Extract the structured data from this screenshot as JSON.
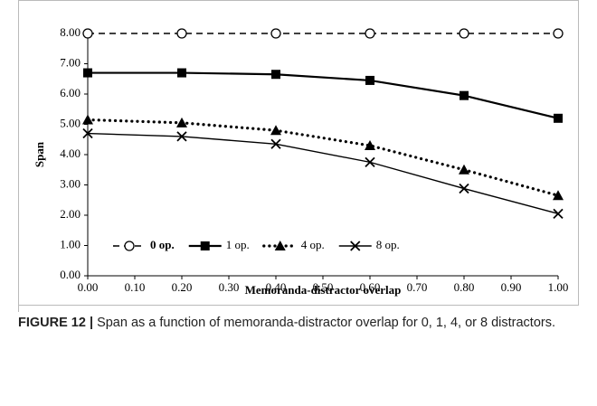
{
  "chart_data": {
    "type": "line",
    "y_label": "Span",
    "x_label": "Memoranda-distractor overlap",
    "x": [
      0,
      0.2,
      0.4,
      0.6,
      0.8,
      1.0
    ],
    "series": [
      {
        "name": "0 op.",
        "color": "#000000",
        "marker": "circle",
        "line_style": "dashed",
        "values": [
          8,
          8,
          8,
          8,
          8,
          8
        ]
      },
      {
        "name": "1 op.",
        "color": "#000000",
        "marker": "square",
        "line_style": "solid",
        "values": [
          6.7,
          6.7,
          6.65,
          6.45,
          5.95,
          5.2
        ]
      },
      {
        "name": "4 op.",
        "color": "#000000",
        "marker": "triangle",
        "line_style": "dotted",
        "values": [
          5.15,
          5.05,
          4.8,
          4.3,
          3.5,
          2.65
        ]
      },
      {
        "name": "8 op.",
        "color": "#000000",
        "marker": "x",
        "line_style": "thin",
        "values": [
          4.7,
          4.6,
          4.35,
          3.75,
          2.88,
          2.05
        ]
      }
    ],
    "xlim": [
      0,
      1
    ],
    "xticks": [
      {
        "value": 0,
        "label": "0.00"
      },
      {
        "value": 0.1,
        "label": "0.10"
      },
      {
        "value": 0.2,
        "label": "0.20"
      },
      {
        "value": 0.3,
        "label": "0.30"
      },
      {
        "value": 0.4,
        "label": "0.40"
      },
      {
        "value": 0.5,
        "label": "0.50"
      },
      {
        "value": 0.6,
        "label": "0.60"
      },
      {
        "value": 0.7,
        "label": "0.70"
      },
      {
        "value": 0.8,
        "label": "0.80"
      },
      {
        "value": 0.9,
        "label": "0.90"
      },
      {
        "value": 1.0,
        "label": "1.00"
      }
    ],
    "ylim": [
      0,
      8
    ],
    "yticks": [
      {
        "value": 0,
        "label": "0.00"
      },
      {
        "value": 1,
        "label": "1.00"
      },
      {
        "value": 2,
        "label": "2.00"
      },
      {
        "value": 3,
        "label": "3.00"
      },
      {
        "value": 4,
        "label": "4.00"
      },
      {
        "value": 5,
        "label": "5.00"
      },
      {
        "value": 6,
        "label": "6.00"
      },
      {
        "value": 7,
        "label": "7.00"
      },
      {
        "value": 8,
        "label": "8.00"
      }
    ],
    "legend": "lower left",
    "grid": false
  },
  "caption": {
    "label": "FIGURE 12 |",
    "text": "Span as a function of memoranda-distractor overlap for 0, 1, 4, or 8 distractors."
  }
}
